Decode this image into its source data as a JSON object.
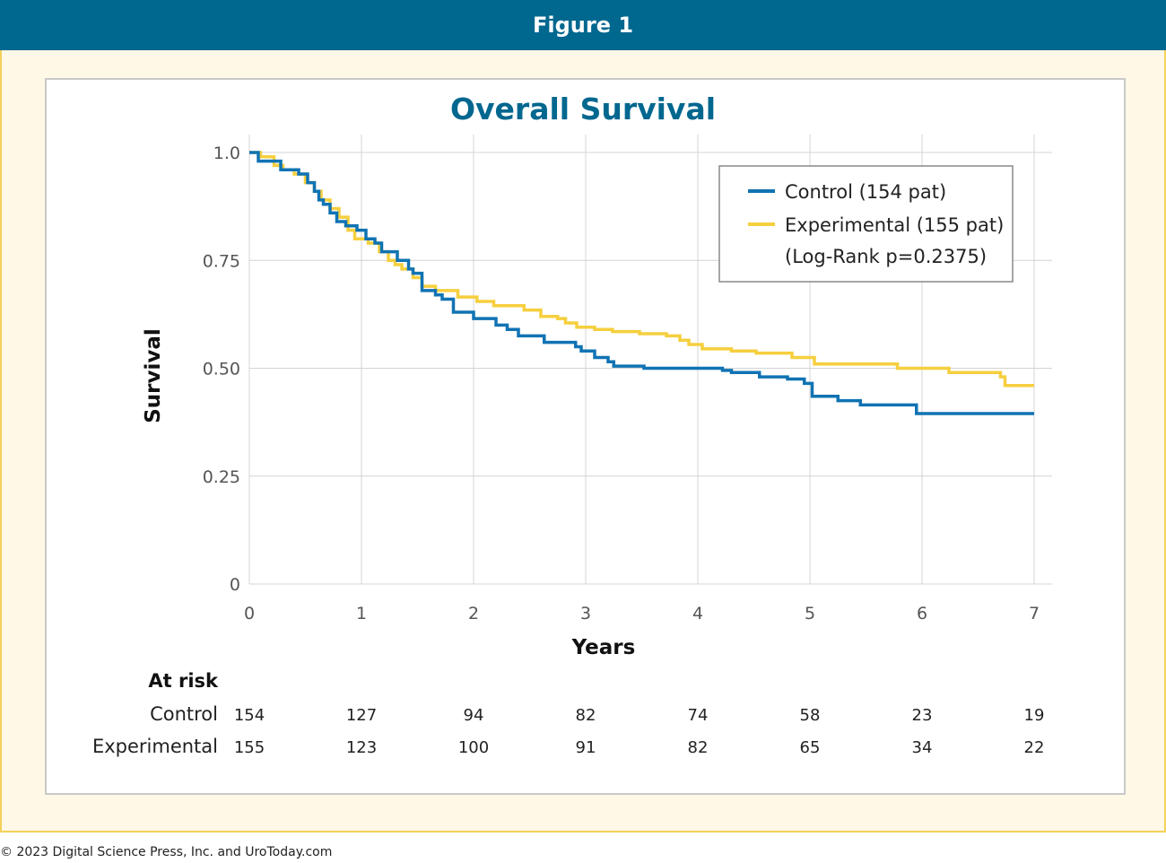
{
  "header": {
    "title": "Figure 1"
  },
  "footer": {
    "text": "© 2023 Digital Science Press, Inc. and UroToday.com"
  },
  "colors": {
    "header_bg": "#00678f",
    "frame_bg": "#fff8e6",
    "frame_border": "#f3d15a",
    "control": "#1073b3",
    "experimental": "#f6cf3e"
  },
  "chart_data": {
    "type": "line",
    "step": true,
    "title": "Overall Survival",
    "xlabel": "Years",
    "ylabel": "Survival",
    "xlim": [
      0,
      7
    ],
    "ylim": [
      0,
      1
    ],
    "x_ticks": [
      "0",
      "1",
      "2",
      "3",
      "4",
      "5",
      "6",
      "7"
    ],
    "y_ticks": [
      "0",
      "0.25",
      "0.50",
      "0.75",
      "1.0"
    ],
    "grid": true,
    "legend": {
      "position": "top-right",
      "items": [
        "Control (154 pat)",
        "Experimental (155 pat)"
      ],
      "note": "(Log-Rank p=0.2375)"
    },
    "series": [
      {
        "name": "Control (154 pat)",
        "x": [
          0,
          0.08,
          0.12,
          0.28,
          0.36,
          0.44,
          0.52,
          0.58,
          0.62,
          0.66,
          0.72,
          0.78,
          0.86,
          0.96,
          1.04,
          1.12,
          1.18,
          1.32,
          1.42,
          1.46,
          1.54,
          1.66,
          1.72,
          1.82,
          2.0,
          2.2,
          2.3,
          2.4,
          2.63,
          2.91,
          2.96,
          3.08,
          3.2,
          3.25,
          3.52,
          4.05,
          4.22,
          4.3,
          4.55,
          4.8,
          4.95,
          5.02,
          5.25,
          5.45,
          5.95,
          7.0
        ],
        "y": [
          1.0,
          0.98,
          0.98,
          0.96,
          0.96,
          0.95,
          0.93,
          0.91,
          0.89,
          0.88,
          0.86,
          0.84,
          0.83,
          0.82,
          0.8,
          0.79,
          0.77,
          0.75,
          0.73,
          0.72,
          0.68,
          0.67,
          0.66,
          0.63,
          0.615,
          0.6,
          0.59,
          0.575,
          0.56,
          0.55,
          0.54,
          0.525,
          0.515,
          0.505,
          0.5,
          0.5,
          0.495,
          0.49,
          0.48,
          0.475,
          0.465,
          0.435,
          0.425,
          0.415,
          0.395,
          0.395
        ]
      },
      {
        "name": "Experimental (155 pat)",
        "x": [
          0,
          0.1,
          0.22,
          0.3,
          0.4,
          0.5,
          0.58,
          0.64,
          0.72,
          0.8,
          0.88,
          0.94,
          1.06,
          1.16,
          1.24,
          1.3,
          1.36,
          1.46,
          1.54,
          1.66,
          1.86,
          2.03,
          2.18,
          2.45,
          2.6,
          2.75,
          2.82,
          2.92,
          3.08,
          3.24,
          3.48,
          3.72,
          3.84,
          3.92,
          4.04,
          4.3,
          4.52,
          4.84,
          5.04,
          5.35,
          5.75,
          5.78,
          6.15,
          6.24,
          6.7,
          6.74,
          7.0
        ],
        "y": [
          1.0,
          0.99,
          0.97,
          0.96,
          0.95,
          0.93,
          0.91,
          0.89,
          0.87,
          0.85,
          0.82,
          0.8,
          0.79,
          0.77,
          0.75,
          0.74,
          0.73,
          0.71,
          0.69,
          0.68,
          0.665,
          0.655,
          0.645,
          0.635,
          0.62,
          0.615,
          0.605,
          0.595,
          0.59,
          0.585,
          0.58,
          0.575,
          0.565,
          0.555,
          0.545,
          0.54,
          0.535,
          0.525,
          0.51,
          0.51,
          0.51,
          0.5,
          0.5,
          0.49,
          0.48,
          0.46,
          0.46
        ]
      }
    ],
    "at_risk": {
      "label": "At risk",
      "rows": [
        {
          "name": "Control",
          "values": [
            "154",
            "127",
            "94",
            "82",
            "74",
            "58",
            "23",
            "19"
          ]
        },
        {
          "name": "Experimental",
          "values": [
            "155",
            "123",
            "100",
            "91",
            "82",
            "65",
            "34",
            "22"
          ]
        }
      ]
    }
  }
}
